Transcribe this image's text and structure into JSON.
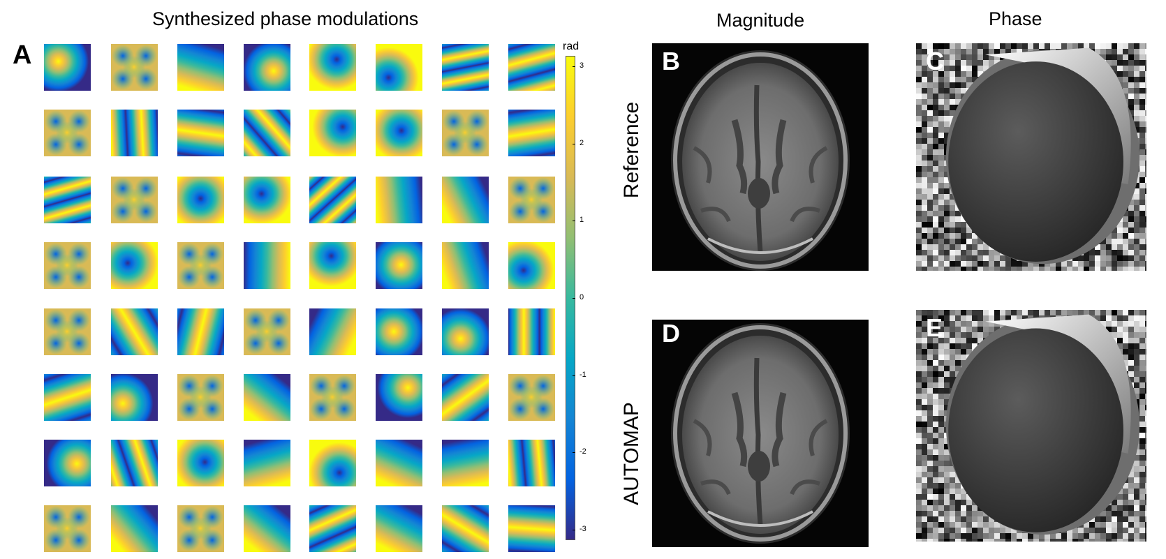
{
  "panel_a": {
    "title": "Synthesized phase modulations",
    "letter": "A",
    "colorbar": {
      "unit": "rad",
      "ticks": [
        "3",
        "2",
        "1",
        "0",
        "-1",
        "-2",
        "-3"
      ],
      "range": [
        -3.14,
        3.14
      ],
      "colors": [
        "#352a87",
        "#0363e1",
        "#1485d4",
        "#06a7c6",
        "#38b99e",
        "#92bf73",
        "#d9ba56",
        "#fcce2e",
        "#f9fb0e"
      ]
    }
  },
  "column_titles": {
    "magnitude": "Magnitude",
    "phase": "Phase"
  },
  "row_labels": {
    "reference": "Reference",
    "automap": "AUTOMAP"
  },
  "panels": {
    "b": "B",
    "c": "C",
    "d": "D",
    "e": "E"
  }
}
